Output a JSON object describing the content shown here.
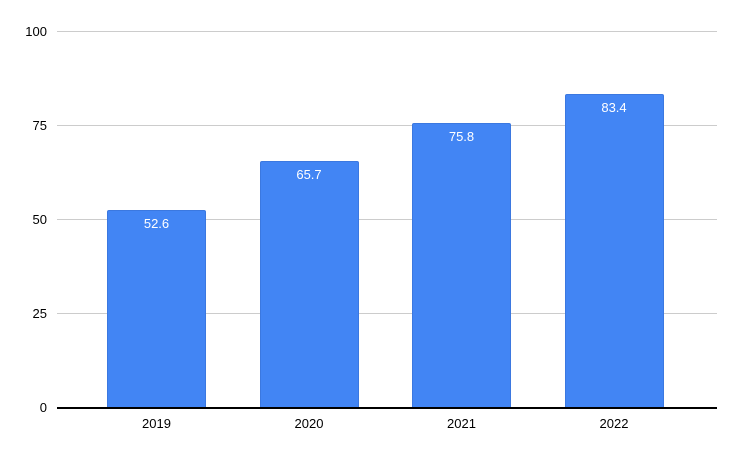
{
  "chart_data": {
    "type": "bar",
    "title": "",
    "xlabel": "",
    "ylabel": "",
    "categories": [
      "2019",
      "2020",
      "2021",
      "2022"
    ],
    "values": [
      52.6,
      65.7,
      75.8,
      83.4
    ],
    "data_labels": [
      "52.6",
      "65.7",
      "75.8",
      "83.4"
    ],
    "yticks": [
      "0",
      "25",
      "50",
      "75",
      "100"
    ],
    "ytick_values": [
      0,
      25,
      50,
      75,
      100
    ],
    "ylim": [
      0,
      100
    ],
    "grid": true,
    "legend": "none",
    "colors": {
      "bar_fill": "#4285f4",
      "bar_border": "#3b78e0",
      "bar_label": "#ffffff",
      "gridline": "#cccccc",
      "axis_line": "#000000",
      "tick_label": "#000000",
      "background": "#ffffff"
    }
  }
}
